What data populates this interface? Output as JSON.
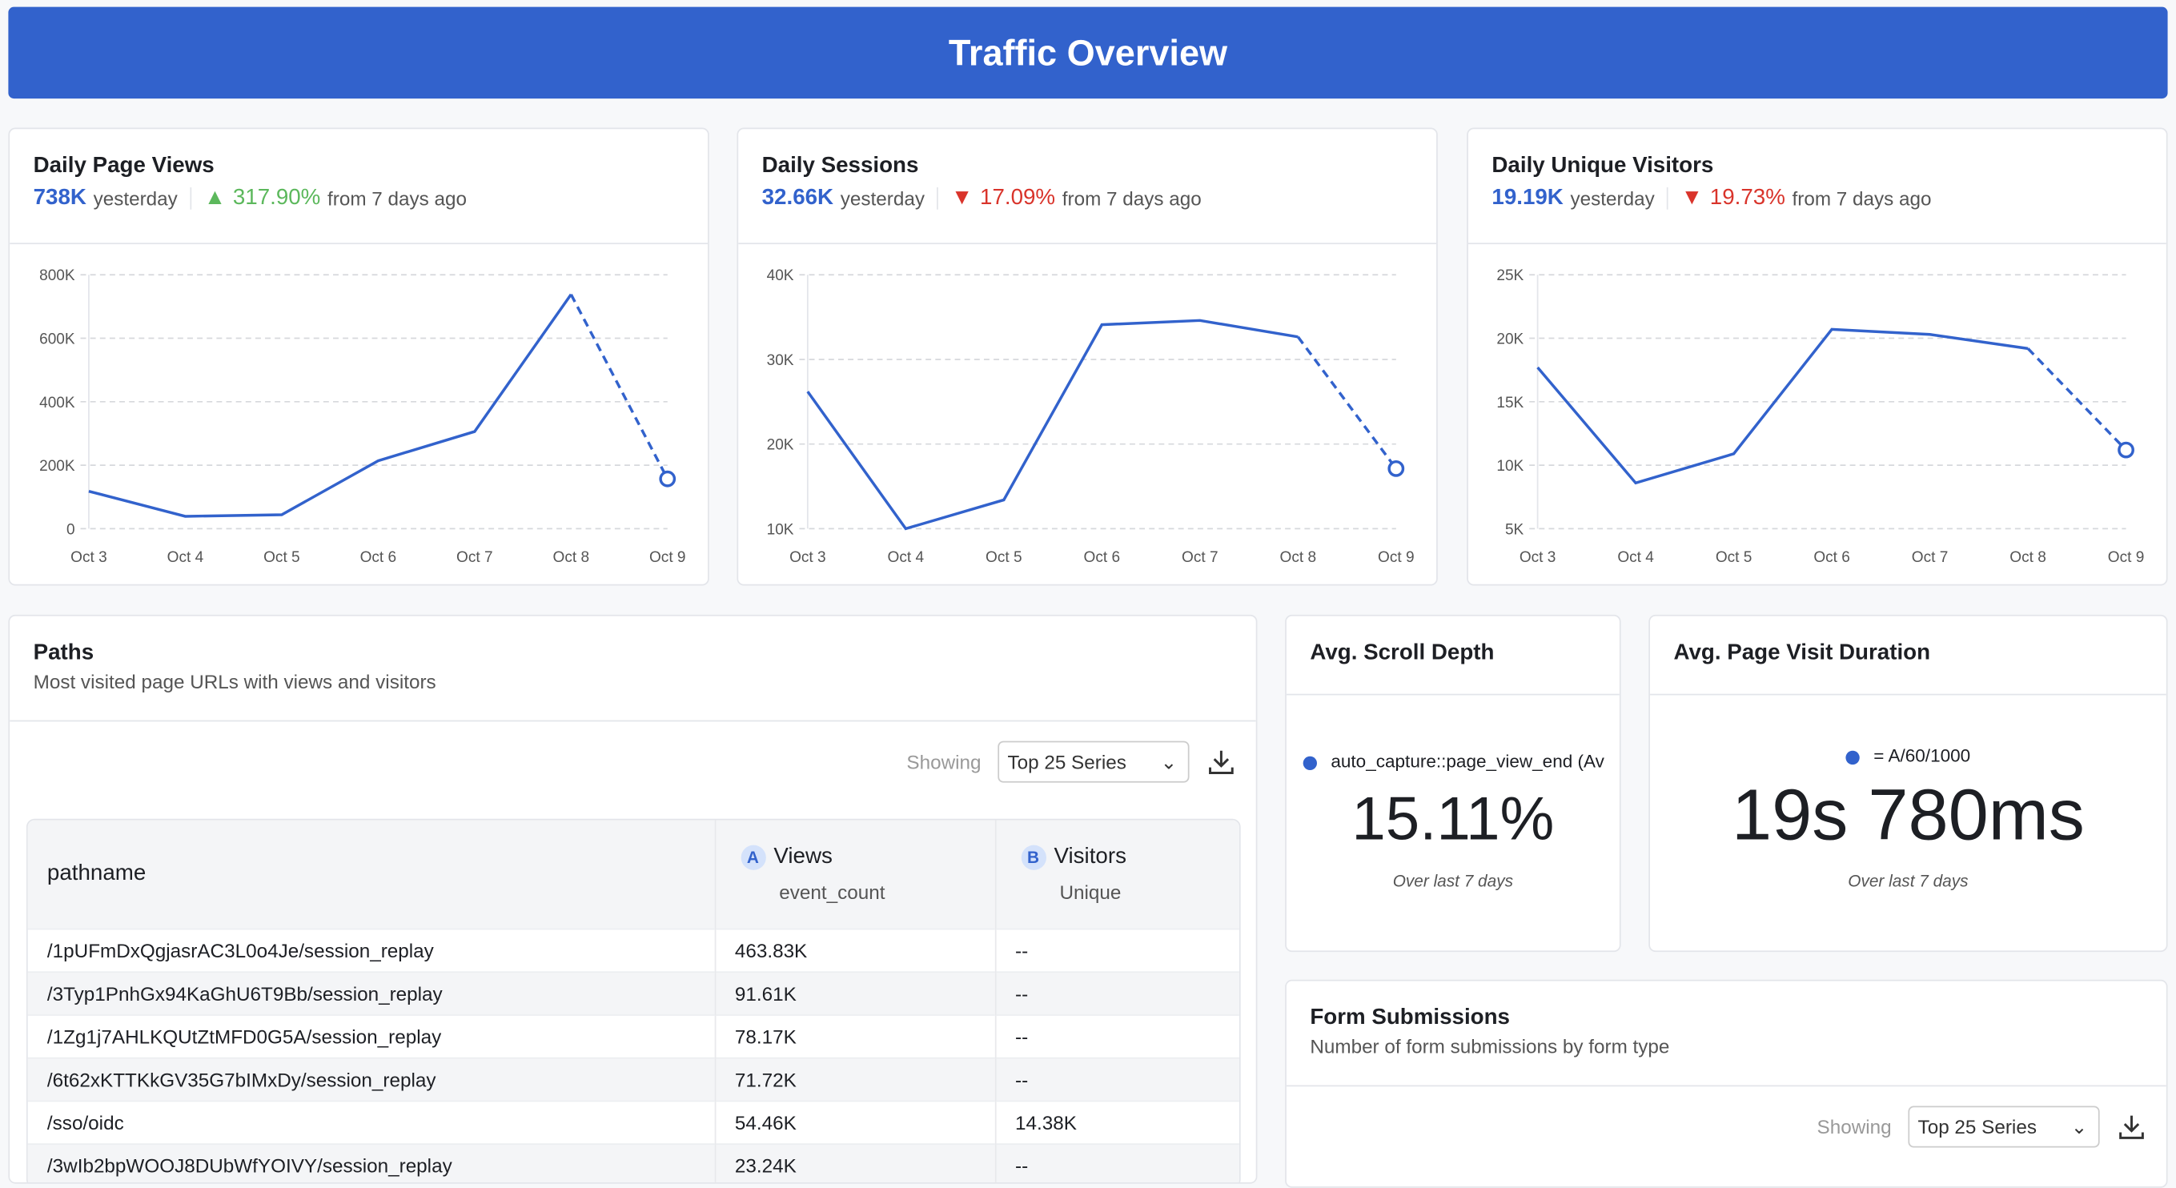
{
  "header": {
    "title": "Traffic Overview"
  },
  "kpis": [
    {
      "title": "Daily Page Views",
      "value": "738K",
      "value_suffix": "yesterday",
      "change": "317.90%",
      "direction": "up",
      "change_suffix": "from 7 days ago"
    },
    {
      "title": "Daily Sessions",
      "value": "32.66K",
      "value_suffix": "yesterday",
      "change": "17.09%",
      "direction": "down",
      "change_suffix": "from 7 days ago"
    },
    {
      "title": "Daily Unique Visitors",
      "value": "19.19K",
      "value_suffix": "yesterday",
      "change": "19.73%",
      "direction": "down",
      "change_suffix": "from 7 days ago"
    }
  ],
  "chart_data": [
    {
      "type": "line",
      "categories": [
        "Oct 3",
        "Oct 4",
        "Oct 5",
        "Oct 6",
        "Oct 7",
        "Oct 8",
        "Oct 9"
      ],
      "values": [
        118000,
        39000,
        44000,
        214000,
        306000,
        738000,
        157000
      ],
      "ylim": [
        0,
        800000
      ],
      "yticks": [
        "0",
        "200K",
        "400K",
        "600K",
        "800K"
      ],
      "incomplete_last_point": true,
      "grid": true,
      "color": "#3262cc"
    },
    {
      "type": "line",
      "categories": [
        "Oct 3",
        "Oct 4",
        "Oct 5",
        "Oct 6",
        "Oct 7",
        "Oct 8",
        "Oct 9"
      ],
      "values": [
        26200,
        10000,
        13400,
        34100,
        34600,
        32660,
        17100
      ],
      "ylim": [
        10000,
        40000
      ],
      "yticks": [
        "10K",
        "20K",
        "30K",
        "40K"
      ],
      "incomplete_last_point": true,
      "grid": true,
      "color": "#3262cc"
    },
    {
      "type": "line",
      "categories": [
        "Oct 3",
        "Oct 4",
        "Oct 5",
        "Oct 6",
        "Oct 7",
        "Oct 8",
        "Oct 9"
      ],
      "values": [
        17700,
        8600,
        10900,
        20700,
        20300,
        19190,
        11200
      ],
      "ylim": [
        5000,
        25000
      ],
      "yticks": [
        "5K",
        "10K",
        "15K",
        "20K",
        "25K"
      ],
      "incomplete_last_point": true,
      "grid": true,
      "color": "#3262cc"
    }
  ],
  "paths": {
    "title": "Paths",
    "subtitle": "Most visited page URLs with views and visitors",
    "showing": "Showing",
    "select": "Top 25 Series",
    "columns": [
      {
        "label": "pathname"
      },
      {
        "badge": "A",
        "label": "Views",
        "sub": "event_count"
      },
      {
        "badge": "B",
        "label": "Visitors",
        "sub": "Unique"
      }
    ],
    "rows": [
      [
        "/1pUFmDxQgjasrAC3L0o4Je/session_replay",
        "463.83K",
        "--"
      ],
      [
        "/3Typ1PnhGx94KaGhU6T9Bb/session_replay",
        "91.61K",
        "--"
      ],
      [
        "/1Zg1j7AHLKQUtZtMFD0G5A/session_replay",
        "78.17K",
        "--"
      ],
      [
        "/6t62xKTTKkGV35G7bIMxDy/session_replay",
        "71.72K",
        "--"
      ],
      [
        "/sso/oidc",
        "54.46K",
        "14.38K"
      ],
      [
        "/3wIb2bpWOOJ8DUbWfYOIVY/session_replay",
        "23.24K",
        "--"
      ]
    ]
  },
  "scroll": {
    "title": "Avg. Scroll Depth",
    "legend": "auto_capture::page_view_end (Av",
    "value": "15.11%",
    "note": "Over last 7 days"
  },
  "duration": {
    "title": "Avg. Page Visit Duration",
    "legend": "= A/60/1000",
    "value": "19s 780ms",
    "note": "Over last 7 days"
  },
  "forms": {
    "title": "Form Submissions",
    "subtitle": "Number of form submissions by form type",
    "showing": "Showing",
    "select": "Top 25 Series"
  }
}
